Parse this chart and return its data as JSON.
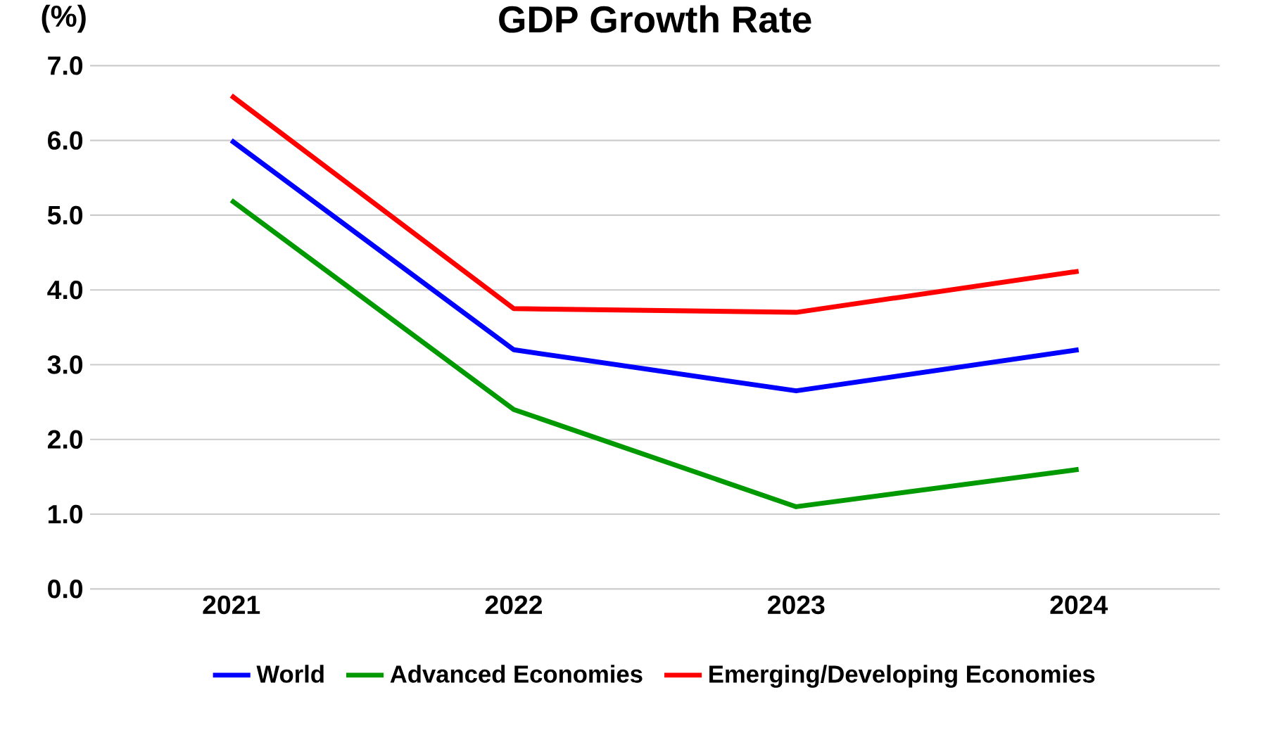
{
  "chart_data": {
    "type": "line",
    "title": "GDP Growth Rate",
    "ylabel": "(%)",
    "categories": [
      "2021",
      "2022",
      "2023",
      "2024"
    ],
    "series": [
      {
        "name": "World",
        "color": "#0000ff",
        "values": [
          6.0,
          3.2,
          2.65,
          3.2
        ]
      },
      {
        "name": "Advanced Economies",
        "color": "#009900",
        "values": [
          5.2,
          2.4,
          1.1,
          1.6
        ]
      },
      {
        "name": "Emerging/Developing Economies",
        "color": "#ff0000",
        "values": [
          6.6,
          3.75,
          3.7,
          4.25
        ]
      }
    ],
    "ylim": [
      0,
      7
    ],
    "yticks": [
      {
        "value": 0,
        "label": "0.0"
      },
      {
        "value": 1,
        "label": "1.0"
      },
      {
        "value": 2,
        "label": "2.0"
      },
      {
        "value": 3,
        "label": "3.0"
      },
      {
        "value": 4,
        "label": "4.0"
      },
      {
        "value": 5,
        "label": "5.0"
      },
      {
        "value": 6,
        "label": "6.0"
      },
      {
        "value": 7,
        "label": "7.0"
      }
    ],
    "grid": "y",
    "legend": "bottom",
    "marker": "none",
    "line_style": "solid"
  }
}
